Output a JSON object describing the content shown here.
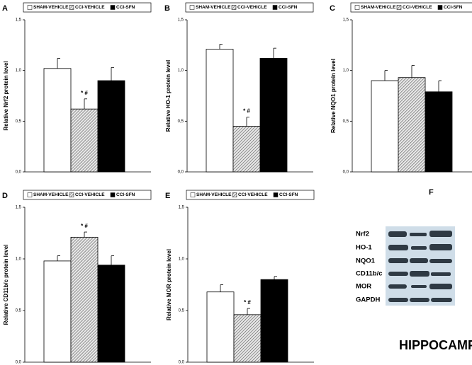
{
  "chart_data": [
    {
      "type": "bar",
      "panel": "A",
      "ylabel": "Relative Nrf2 protein level",
      "ylim": [
        0,
        1.5
      ],
      "yticks": [
        {
          "value": 0,
          "label": "0,0"
        },
        {
          "value": 0.5,
          "label": "0,5"
        },
        {
          "value": 1,
          "label": "1,0"
        },
        {
          "value": 1.5,
          "label": "1,5"
        }
      ],
      "series": [
        {
          "name": "SHAM-VEHICLE",
          "color": "#ffffff",
          "values": [
            1.02
          ],
          "errors": [
            0.1
          ]
        },
        {
          "name": "CCI-VEHICLE",
          "color": "#bbbbbb",
          "pattern": "hatch",
          "values": [
            0.62
          ],
          "errors": [
            0.1
          ],
          "annotation": "* #"
        },
        {
          "name": "CCI-SFN",
          "color": "#000000",
          "values": [
            0.9
          ],
          "errors": [
            0.13
          ]
        }
      ]
    },
    {
      "type": "bar",
      "panel": "B",
      "ylabel": "Relative HO-1 protein level",
      "ylim": [
        0,
        1.5
      ],
      "yticks": [
        {
          "value": 0,
          "label": "0,0"
        },
        {
          "value": 0.5,
          "label": "0,5"
        },
        {
          "value": 1,
          "label": "1,0"
        },
        {
          "value": 1.5,
          "label": "1,5"
        }
      ],
      "series": [
        {
          "name": "SHAM-VEHICLE",
          "color": "#ffffff",
          "values": [
            1.21
          ],
          "errors": [
            0.05
          ]
        },
        {
          "name": "CCI-VEHICLE",
          "color": "#bbbbbb",
          "pattern": "hatch",
          "values": [
            0.45
          ],
          "errors": [
            0.09
          ],
          "annotation": "* #"
        },
        {
          "name": "CCI-SFN",
          "color": "#000000",
          "values": [
            1.12
          ],
          "errors": [
            0.1
          ]
        }
      ]
    },
    {
      "type": "bar",
      "panel": "C",
      "ylabel": "Relative NQO1 protein level",
      "ylim": [
        0,
        1.5
      ],
      "yticks": [
        {
          "value": 0,
          "label": "0,0"
        },
        {
          "value": 0.5,
          "label": "0,5"
        },
        {
          "value": 1,
          "label": "1,0"
        },
        {
          "value": 1.5,
          "label": "1,5"
        }
      ],
      "series": [
        {
          "name": "SHAM-VEHICLE",
          "color": "#ffffff",
          "values": [
            0.9
          ],
          "errors": [
            0.1
          ]
        },
        {
          "name": "CCI-VEHICLE",
          "color": "#bbbbbb",
          "pattern": "hatch",
          "values": [
            0.93
          ],
          "errors": [
            0.12
          ]
        },
        {
          "name": "CCI-SFN",
          "color": "#000000",
          "values": [
            0.79
          ],
          "errors": [
            0.11
          ]
        }
      ]
    },
    {
      "type": "bar",
      "panel": "D",
      "ylabel": "Relative CD11b/c protein level",
      "ylim": [
        0,
        1.5
      ],
      "yticks": [
        {
          "value": 0,
          "label": "0,0"
        },
        {
          "value": 0.5,
          "label": "0,5"
        },
        {
          "value": 1,
          "label": "1,0"
        },
        {
          "value": 1.5,
          "label": "1,5"
        }
      ],
      "series": [
        {
          "name": "SHAM-VEHICLE",
          "color": "#ffffff",
          "values": [
            0.98
          ],
          "errors": [
            0.05
          ]
        },
        {
          "name": "CCI-VEHICLE",
          "color": "#bbbbbb",
          "pattern": "hatch",
          "values": [
            1.21
          ],
          "errors": [
            0.05
          ],
          "annotation": "* #"
        },
        {
          "name": "CCI-SFN",
          "color": "#000000",
          "values": [
            0.94
          ],
          "errors": [
            0.09
          ]
        }
      ]
    },
    {
      "type": "bar",
      "panel": "E",
      "ylabel": "Relative MOR protein level",
      "ylim": [
        0,
        1.5
      ],
      "yticks": [
        {
          "value": 0,
          "label": "0,0"
        },
        {
          "value": 0.5,
          "label": "0,5"
        },
        {
          "value": 1,
          "label": "1,0"
        },
        {
          "value": 1.5,
          "label": "1,5"
        }
      ],
      "series": [
        {
          "name": "SHAM-VEHICLE",
          "color": "#ffffff",
          "values": [
            0.68
          ],
          "errors": [
            0.07
          ]
        },
        {
          "name": "CCI-VEHICLE",
          "color": "#bbbbbb",
          "pattern": "hatch",
          "values": [
            0.46
          ],
          "errors": [
            0.06
          ],
          "annotation": "* #"
        },
        {
          "name": "CCI-SFN",
          "color": "#000000",
          "values": [
            0.8
          ],
          "errors": [
            0.03
          ]
        }
      ]
    }
  ],
  "blot": {
    "panel": "F",
    "labels": [
      "Nrf2",
      "HO-1",
      "NQO1",
      "CD11b/c",
      "MOR",
      "GAPDH"
    ],
    "title": "HIPPOCAMPUS"
  }
}
